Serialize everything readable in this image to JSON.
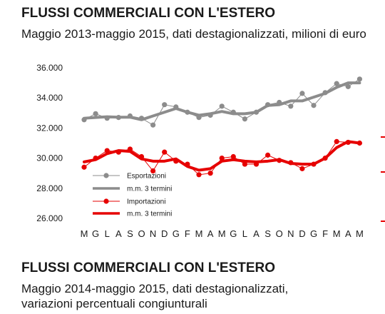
{
  "header": {
    "title": "FLUSSI COMMERCIALI CON L'ESTERO",
    "subtitle": "Maggio 2013-maggio 2015, dati destagionalizzati, milioni di euro"
  },
  "footer": {
    "title": "FLUSSI COMMERCIALI CON L'ESTERO",
    "subtitle_line1": "Maggio 2014-maggio 2015, dati destagionalizzati,",
    "subtitle_line2": "variazioni percentuali congiunturali"
  },
  "chart_data": {
    "type": "line",
    "categories": [
      "M",
      "G",
      "L",
      "A",
      "S",
      "O",
      "N",
      "D",
      "G",
      "F",
      "M",
      "A",
      "M",
      "G",
      "L",
      "A",
      "S",
      "O",
      "N",
      "D",
      "G",
      "F",
      "M",
      "A",
      "M"
    ],
    "ylim": [
      26000,
      36000
    ],
    "yticks": [
      26000,
      28000,
      30000,
      32000,
      34000,
      36000
    ],
    "ytick_labels": [
      "26.000",
      "28.000",
      "30.000",
      "32.000",
      "34.000",
      "36.000"
    ],
    "grid": false,
    "legend_position": "bottom-left",
    "series": [
      {
        "name": "Esportazioni",
        "style": "markers",
        "color": "#8c8c8c",
        "values": [
          32550,
          32950,
          32650,
          32700,
          32800,
          32650,
          32200,
          33550,
          33400,
          33050,
          32700,
          32850,
          33450,
          33050,
          32600,
          33050,
          33550,
          33700,
          33450,
          34300,
          33500,
          34350,
          34950,
          34750,
          35250
        ]
      },
      {
        "name": "m.m. 3 termini",
        "style": "line",
        "color": "#8c8c8c",
        "values": [
          32650,
          32700,
          32750,
          32720,
          32720,
          32550,
          32800,
          33050,
          33300,
          33050,
          32850,
          32950,
          33100,
          32950,
          32950,
          33050,
          33500,
          33550,
          33800,
          33800,
          34050,
          34300,
          34700,
          35000,
          35000
        ]
      },
      {
        "name": "Importazioni",
        "style": "markers",
        "color": "#e60000",
        "values": [
          29400,
          30000,
          30500,
          30400,
          30600,
          30100,
          29150,
          30400,
          29800,
          29600,
          28900,
          29000,
          30000,
          30100,
          29600,
          29600,
          30200,
          29850,
          29700,
          29300,
          29600,
          30000,
          31100,
          31050,
          31000
        ]
      },
      {
        "name": "m.m. 3 termini",
        "style": "line",
        "color": "#e60000",
        "values": [
          29750,
          29900,
          30300,
          30500,
          30450,
          29950,
          29800,
          29800,
          29950,
          29450,
          29200,
          29300,
          29800,
          29900,
          29800,
          29750,
          29800,
          29900,
          29650,
          29600,
          29600,
          30000,
          30700,
          31100,
          31000
        ]
      }
    ]
  }
}
